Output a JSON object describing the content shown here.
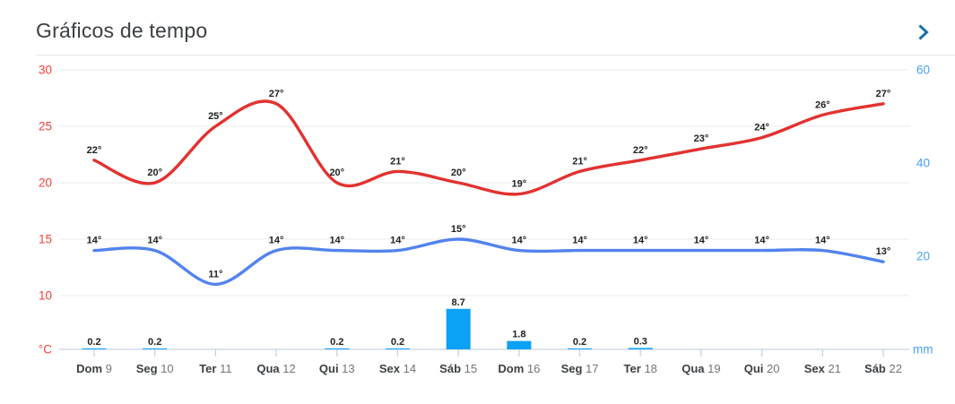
{
  "header": {
    "title": "Gráficos de tempo",
    "chevron_icon": "chevron-right",
    "chevron_color": "#1a73a8"
  },
  "chart_data": {
    "type": "line+bar",
    "title": "Gráficos de tempo",
    "categories": [
      "Dom 9",
      "Seg 10",
      "Ter 11",
      "Qua 12",
      "Qui 13",
      "Sex 14",
      "Sáb 15",
      "Dom 16",
      "Seg 17",
      "Ter 18",
      "Qua 19",
      "Qui 20",
      "Sex 21",
      "Sáb 22"
    ],
    "series": [
      {
        "name": "temperatura-maxima",
        "type": "line",
        "unit": "°C",
        "color": "#e23230",
        "values": [
          22,
          20,
          25,
          27,
          20,
          21,
          20,
          19,
          21,
          22,
          23,
          24,
          26,
          27
        ]
      },
      {
        "name": "temperatura-minima",
        "type": "line",
        "unit": "°C",
        "color": "#5283ec",
        "values": [
          14,
          14,
          11,
          14,
          14,
          14,
          15,
          14,
          14,
          14,
          14,
          14,
          14,
          13
        ]
      },
      {
        "name": "precipitacao",
        "type": "bar",
        "unit": "mm",
        "color": "#0ba1f5",
        "values": [
          0.2,
          0.2,
          null,
          null,
          0.2,
          0.2,
          8.7,
          1.8,
          0.2,
          0.3,
          null,
          null,
          null,
          null
        ]
      }
    ],
    "left_axis": {
      "label": "°C",
      "ticks": [
        30,
        25,
        20,
        15,
        10
      ],
      "color": "#f5413b",
      "range": [
        5,
        30
      ]
    },
    "right_axis": {
      "label": "mm",
      "ticks": [
        60,
        40,
        20
      ],
      "color": "#4aa0f5",
      "range": [
        0,
        60
      ]
    },
    "grid": true,
    "legend": "none"
  }
}
